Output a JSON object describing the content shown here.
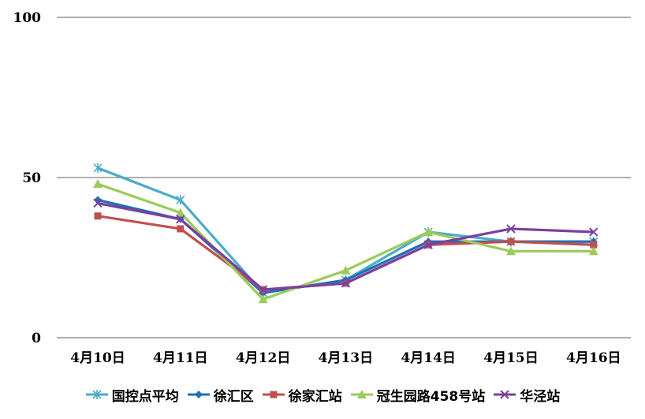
{
  "chart_data": {
    "type": "line",
    "categories": [
      "4月10日",
      "4月11日",
      "4月12日",
      "4月13日",
      "4月14日",
      "4月15日",
      "4月16日"
    ],
    "ylim": [
      0,
      100
    ],
    "yticks": [
      "0",
      "50",
      "100"
    ],
    "grid": true,
    "legend_position": "bottom",
    "series": [
      {
        "name": "国控点平均",
        "color": "#4BACC6",
        "marker": "star",
        "values": [
          53,
          43,
          14,
          18,
          33,
          30,
          30
        ]
      },
      {
        "name": "徐汇区",
        "color": "#1F6FB5",
        "marker": "diamond",
        "values": [
          43,
          37,
          14,
          18,
          30,
          30,
          30
        ]
      },
      {
        "name": "徐家汇站",
        "color": "#C0504D",
        "marker": "square",
        "values": [
          38,
          34,
          15,
          17,
          29,
          30,
          29
        ]
      },
      {
        "name": "冠生园路458号站",
        "color": "#9BCB5B",
        "marker": "triangle",
        "values": [
          48,
          39,
          12,
          21,
          33,
          27,
          27
        ]
      },
      {
        "name": "华泾站",
        "color": "#7B3FA0",
        "marker": "x",
        "values": [
          42,
          37,
          15,
          17,
          29,
          34,
          33
        ]
      }
    ]
  }
}
